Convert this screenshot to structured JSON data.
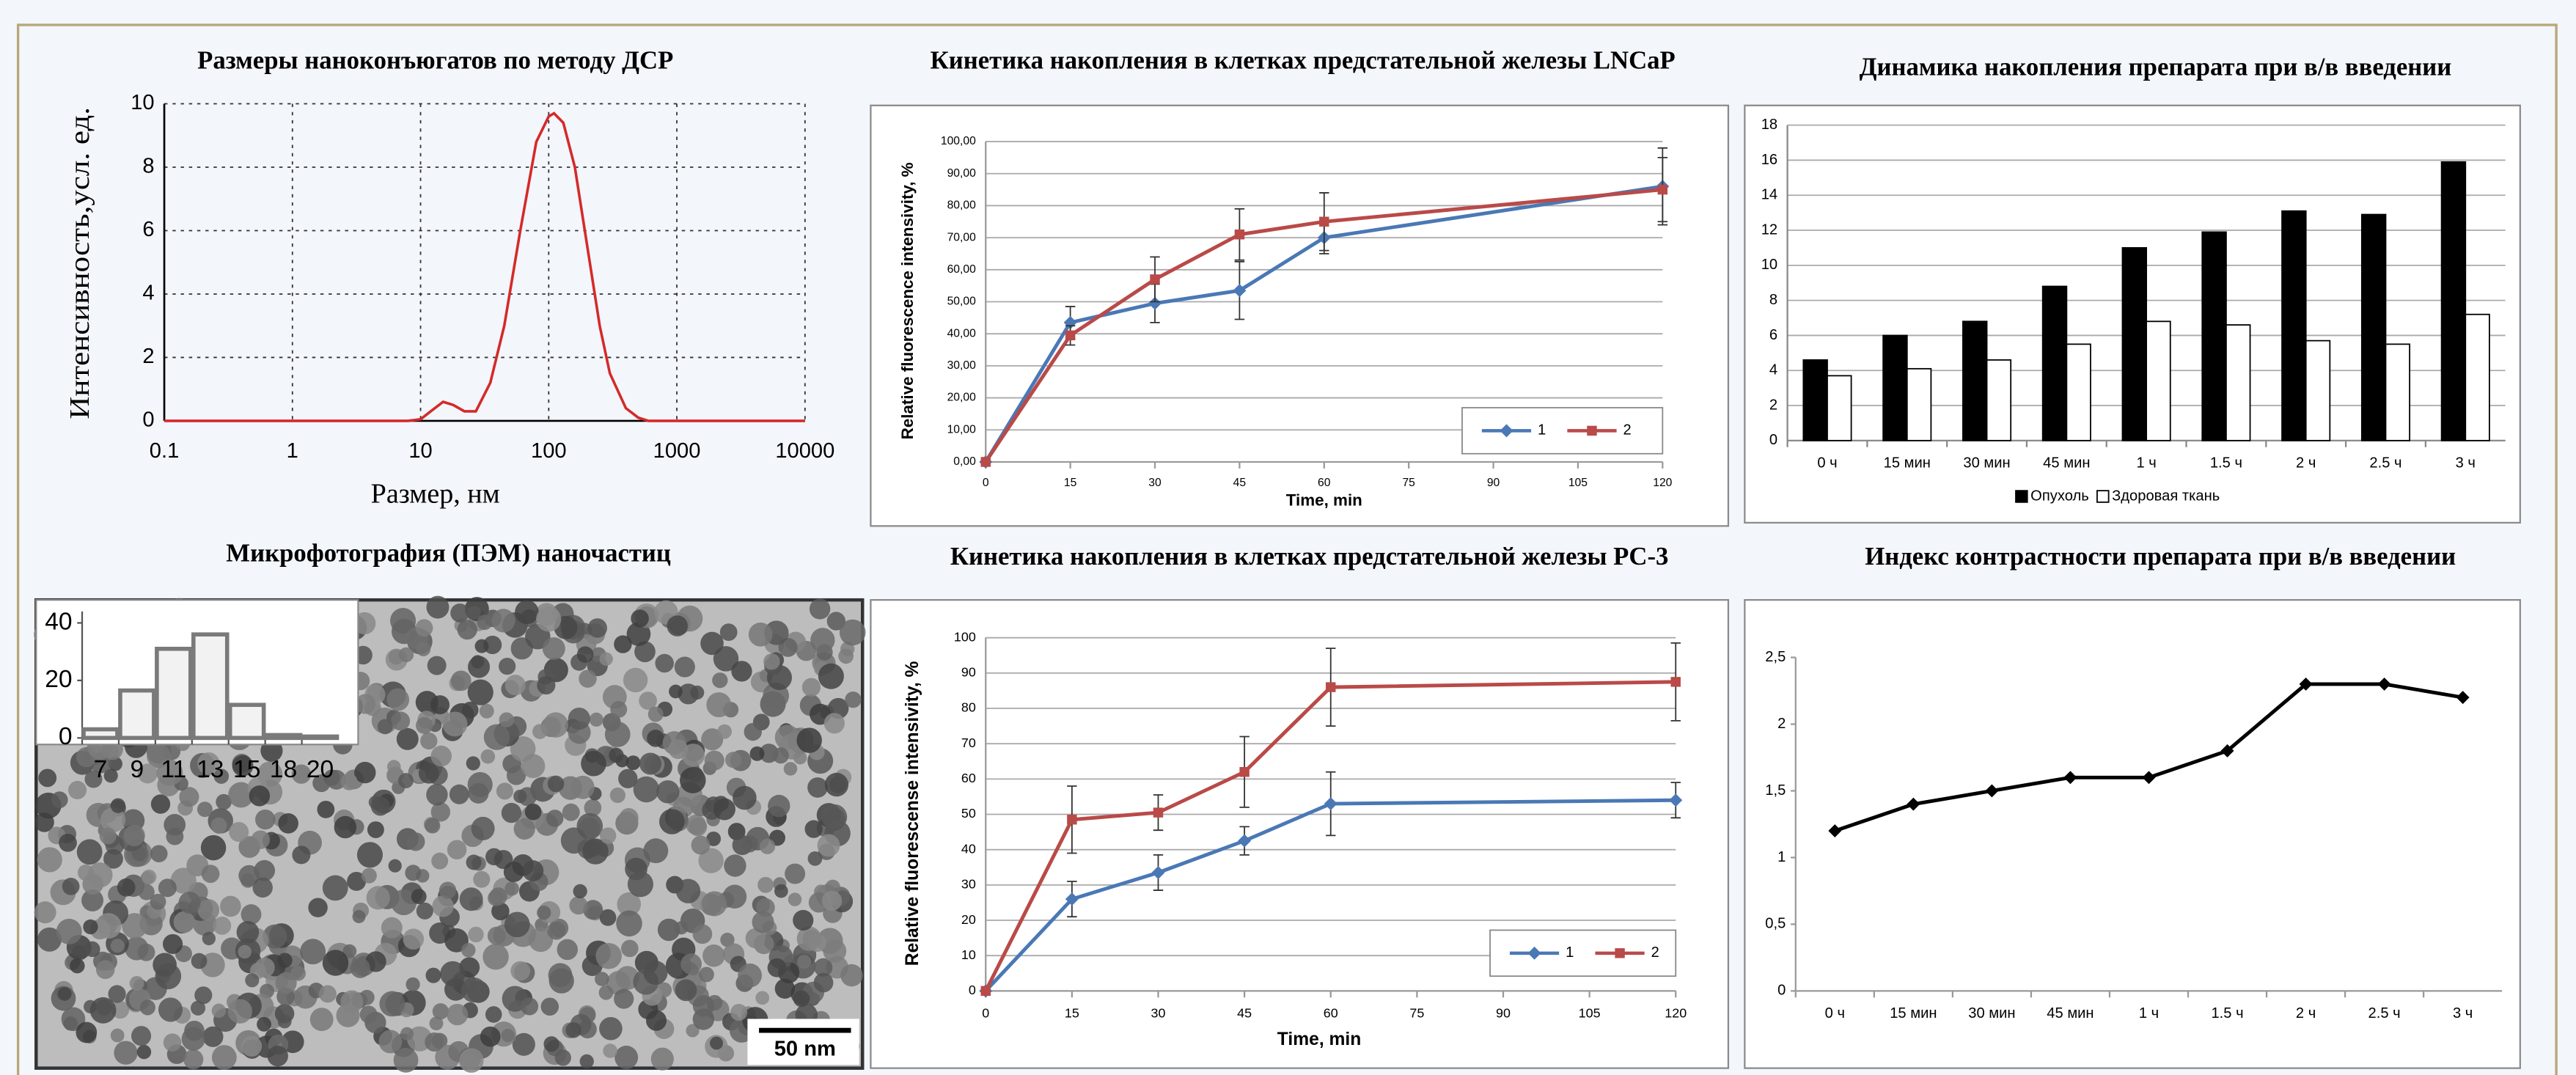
{
  "chart_data": [
    {
      "type": "line",
      "title": "Размеры наноконъюгатов по методу ДСР",
      "x_label": "Размер, нм",
      "y_label": "Интенсивность,усл. ед.",
      "x": [
        0.1,
        1,
        5,
        8,
        10,
        12,
        15,
        18,
        22,
        27,
        35,
        45,
        60,
        80,
        100,
        110,
        130,
        160,
        200,
        250,
        300,
        400,
        500,
        600,
        1000,
        10000
      ],
      "values": [
        0,
        0,
        0,
        0,
        0.05,
        0.3,
        0.6,
        0.5,
        0.3,
        0.3,
        1.2,
        3,
        6,
        8.8,
        9.6,
        9.7,
        9.4,
        8,
        5.5,
        3,
        1.5,
        0.4,
        0.1,
        0,
        0,
        0
      ],
      "color": "#d42a2a",
      "xscale": "log",
      "xlim": [
        0.1,
        10000
      ],
      "xticks": [
        0.1,
        1,
        10,
        100,
        1000,
        10000
      ],
      "ylim": [
        0,
        10
      ],
      "yticks": [
        0,
        2,
        4,
        6,
        8,
        10
      ],
      "grid": true
    },
    {
      "type": "line",
      "title": "Кинетика накопления в клетках предстательной железы LNCaP",
      "x_label": "Time, min",
      "y_label": "Relative fluorescence intensivity, %",
      "x": [
        0,
        15,
        30,
        45,
        60,
        120
      ],
      "series": [
        {
          "name": "1",
          "color": "#4a78b5",
          "marker": "diamond",
          "values": [
            0,
            43.5,
            49.5,
            53.5,
            70,
            86
          ],
          "errors": [
            0,
            5,
            6,
            9,
            5,
            12
          ]
        },
        {
          "name": "2",
          "color": "#b94a48",
          "marker": "square",
          "values": [
            0,
            39.5,
            57,
            71,
            75,
            85
          ],
          "errors": [
            0,
            3,
            7,
            8,
            9,
            10
          ]
        }
      ],
      "xlim": [
        0,
        120
      ],
      "xticks": [
        0,
        15,
        30,
        45,
        60,
        75,
        90,
        105,
        120
      ],
      "ylim": [
        0,
        100
      ],
      "yticks": [
        {
          "value": 0,
          "label": "0,00"
        },
        {
          "value": 10,
          "label": "10,00"
        },
        {
          "value": 20,
          "label": "20,00"
        },
        {
          "value": 30,
          "label": "30,00"
        },
        {
          "value": 40,
          "label": "40,00"
        },
        {
          "value": 50,
          "label": "50,00"
        },
        {
          "value": 60,
          "label": "60,00"
        },
        {
          "value": 70,
          "label": "70,00"
        },
        {
          "value": 80,
          "label": "80,00"
        },
        {
          "value": 90,
          "label": "90,00"
        },
        {
          "value": 100,
          "label": "100,00"
        }
      ],
      "grid": true,
      "legend": "bottom-right"
    },
    {
      "type": "bar",
      "title": "Динамика накопления препарата при в/в введении",
      "categories": [
        "0 ч",
        "15 мин",
        "30 мин",
        "45 мин",
        "1 ч",
        "1.5 ч",
        "2 ч",
        "2.5 ч",
        "3 ч"
      ],
      "series": [
        {
          "name": "Опухоль",
          "color": "#000000",
          "values": [
            4.6,
            6,
            6.8,
            8.8,
            11,
            11.9,
            13.1,
            12.9,
            15.9
          ]
        },
        {
          "name": "Здоровая ткань",
          "color": "#ffffff",
          "values": [
            3.7,
            4.1,
            4.6,
            5.5,
            6.8,
            6.6,
            5.7,
            5.5,
            7.2
          ]
        }
      ],
      "edge_color": "#000000",
      "ylim": [
        0,
        18
      ],
      "yticks": [
        0,
        2,
        4,
        6,
        8,
        10,
        12,
        14,
        16,
        18
      ],
      "grid": true,
      "legend": "bottom"
    },
    {
      "type": "bar",
      "title": "Микрофотография (ПЭМ) наночастиц",
      "scale_label": "50 nm",
      "categories": [
        "7",
        "9",
        "11",
        "13",
        "15",
        "18",
        "20"
      ],
      "values": [
        3,
        16.5,
        31,
        36,
        11.5,
        1,
        0.5
      ],
      "color": "#f2f2f2",
      "edge_color": "#7a7a7a",
      "ylim": [
        0,
        44
      ],
      "yticks": [
        0,
        20,
        40
      ],
      "grid": false
    },
    {
      "type": "line",
      "title": "Кинетика накопления в клетках предстательной железы PC-3",
      "x_label": "Time, min",
      "y_label": "Relative fluorescense intensivity, %",
      "x": [
        0,
        15,
        30,
        45,
        60,
        120
      ],
      "series": [
        {
          "name": "1",
          "color": "#4a78b5",
          "marker": "diamond",
          "values": [
            0,
            26,
            33.5,
            42.5,
            53,
            54
          ],
          "errors": [
            0,
            5,
            5,
            4,
            9,
            5
          ]
        },
        {
          "name": "2",
          "color": "#b94a48",
          "marker": "square",
          "values": [
            0,
            48.5,
            50.5,
            62,
            86,
            87.5
          ],
          "errors": [
            0,
            9.5,
            5,
            10,
            11,
            11
          ]
        }
      ],
      "xlim": [
        0,
        120
      ],
      "xticks": [
        0,
        15,
        30,
        45,
        60,
        75,
        90,
        105,
        120
      ],
      "ylim": [
        0,
        100
      ],
      "yticks": [
        0,
        10,
        20,
        30,
        40,
        50,
        60,
        70,
        80,
        90,
        100
      ],
      "grid": true,
      "legend": "bottom-right"
    },
    {
      "type": "line",
      "title": "Индекс контрастности препарата при в/в введении",
      "categories": [
        "0 ч",
        "15 мин",
        "30 мин",
        "45 мин",
        "1 ч",
        "1.5 ч",
        "2 ч",
        "2.5 ч",
        "3 ч"
      ],
      "values": [
        1.2,
        1.4,
        1.5,
        1.6,
        1.6,
        1.8,
        2.3,
        2.3,
        2.2
      ],
      "color": "#000000",
      "marker": "diamond",
      "ylim": [
        0,
        2.5
      ],
      "yticks": [
        0,
        {
          "value": 0.5,
          "label": "0,5"
        },
        1,
        {
          "value": 1.5,
          "label": "1,5"
        },
        2,
        {
          "value": 2.5,
          "label": "2,5"
        }
      ],
      "grid": false
    }
  ]
}
